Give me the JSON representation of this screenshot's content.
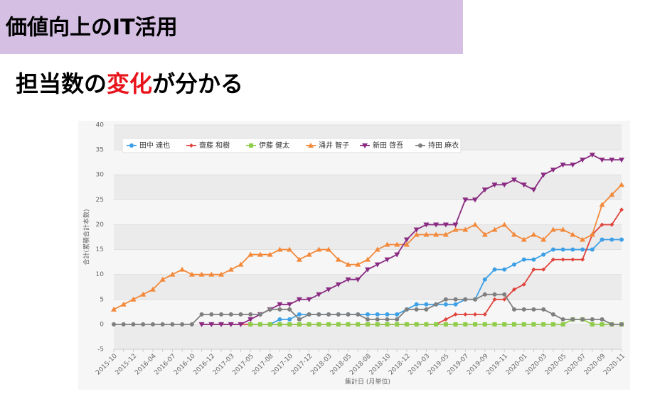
{
  "header": {
    "title": "価値向上のIT活用"
  },
  "subtitle": {
    "parts": [
      "担当数の",
      "変化",
      "が分かる"
    ]
  },
  "chart_data": {
    "type": "line",
    "y_label": "合計(累積合計本数)",
    "x_label": "集計日 (月単位)",
    "categories": [
      "2015-10",
      null,
      "2015-12",
      null,
      "2016-04",
      null,
      "2016-07",
      null,
      "2016-10",
      null,
      "2016-12",
      null,
      "2017-03",
      null,
      "2017-05",
      null,
      "2017-08",
      null,
      "2017-10",
      null,
      "2017-12",
      null,
      "2018-03",
      null,
      "2018-05",
      null,
      "2018-08",
      null,
      "2018-10",
      null,
      "2018-12",
      null,
      "2019-03",
      null,
      "2019-05",
      null,
      "2019-07",
      null,
      "2019-09",
      null,
      "2019-11",
      null,
      "2020-01",
      null,
      "2020-03",
      null,
      "2020-05",
      null,
      "2020-07",
      null,
      "2020-09",
      null,
      "2020-11"
    ],
    "ylim": [
      -5,
      40
    ],
    "yticks": [
      -5,
      0,
      5,
      10,
      15,
      20,
      25,
      30,
      35,
      40
    ],
    "grid": true,
    "legend": "top-left",
    "series": [
      {
        "name": "田中 達也",
        "color": "#3ea0e6",
        "marker": "circle",
        "values": [
          null,
          null,
          null,
          null,
          null,
          null,
          null,
          null,
          null,
          null,
          null,
          null,
          null,
          null,
          0,
          0,
          0,
          1,
          1,
          2,
          2,
          2,
          2,
          2,
          2,
          2,
          2,
          2,
          2,
          2,
          3,
          4,
          4,
          4,
          4,
          4,
          5,
          5,
          9,
          11,
          11,
          12,
          13,
          13,
          14,
          15,
          15,
          15,
          15,
          15,
          17,
          17,
          17
        ]
      },
      {
        "name": "齋藤 和樹",
        "color": "#e0443c",
        "marker": "diamond",
        "values": [
          null,
          null,
          null,
          null,
          null,
          null,
          null,
          null,
          null,
          0,
          0,
          0,
          0,
          0,
          0,
          0,
          0,
          0,
          0,
          0,
          0,
          0,
          0,
          0,
          0,
          0,
          0,
          0,
          0,
          0,
          0,
          0,
          0,
          0,
          1,
          2,
          2,
          2,
          2,
          5,
          5,
          7,
          8,
          11,
          11,
          13,
          13,
          13,
          13,
          18,
          20,
          20,
          23
        ]
      },
      {
        "name": "伊藤 健太",
        "color": "#8fcc4a",
        "marker": "square",
        "values": [
          null,
          null,
          null,
          null,
          null,
          null,
          null,
          null,
          null,
          null,
          null,
          null,
          null,
          null,
          0,
          0,
          0,
          0,
          0,
          0,
          0,
          0,
          0,
          0,
          0,
          0,
          0,
          0,
          0,
          0,
          0,
          0,
          0,
          0,
          0,
          0,
          0,
          0,
          0,
          0,
          0,
          0,
          0,
          0,
          0,
          0,
          0,
          1,
          1,
          0,
          0,
          0,
          0
        ]
      },
      {
        "name": "涌井 智子",
        "color": "#f3893a",
        "marker": "triangle",
        "values": [
          3,
          4,
          5,
          6,
          7,
          9,
          10,
          11,
          10,
          10,
          10,
          10,
          11,
          12,
          14,
          14,
          14,
          15,
          15,
          13,
          14,
          15,
          15,
          13,
          12,
          12,
          13,
          15,
          16,
          16,
          16,
          18,
          18,
          18,
          18,
          19,
          19,
          20,
          18,
          19,
          20,
          18,
          17,
          18,
          17,
          19,
          19,
          18,
          17,
          18,
          24,
          26,
          28
        ]
      },
      {
        "name": "新田 啓吾",
        "color": "#8a2b82",
        "marker": "triangle-down",
        "values": [
          null,
          null,
          null,
          null,
          null,
          null,
          null,
          null,
          null,
          0,
          0,
          0,
          0,
          0,
          1,
          2,
          3,
          4,
          4,
          5,
          5,
          6,
          7,
          8,
          9,
          9,
          11,
          12,
          13,
          14,
          17,
          19,
          20,
          20,
          20,
          20,
          25,
          25,
          27,
          28,
          28,
          29,
          28,
          27,
          30,
          31,
          32,
          32,
          33,
          34,
          33,
          33,
          33
        ]
      },
      {
        "name": "持田 麻衣",
        "color": "#7f7f7f",
        "marker": "circle",
        "values": [
          0,
          0,
          0,
          0,
          0,
          0,
          0,
          0,
          0,
          2,
          2,
          2,
          2,
          2,
          2,
          2,
          3,
          3,
          3,
          1,
          2,
          2,
          2,
          2,
          2,
          2,
          1,
          1,
          1,
          1,
          3,
          3,
          3,
          4,
          5,
          5,
          5,
          5,
          6,
          6,
          6,
          3,
          3,
          3,
          3,
          2,
          1,
          1,
          1,
          1,
          1,
          0,
          0
        ]
      }
    ]
  }
}
